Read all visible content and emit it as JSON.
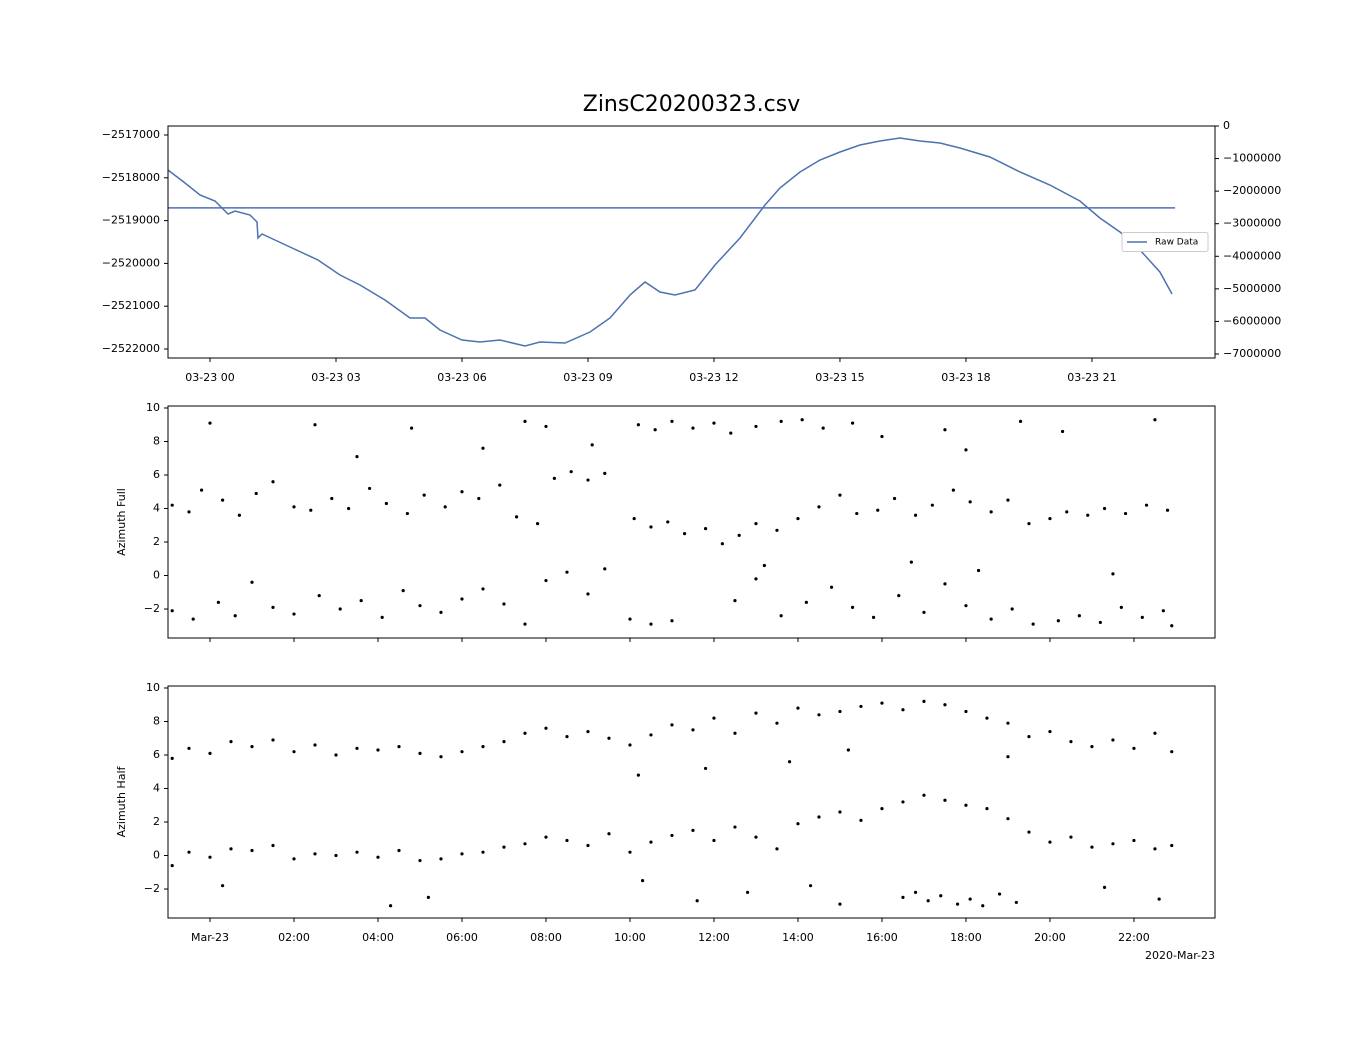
{
  "chart_data": [
    {
      "type": "line",
      "title": "ZinsC20200323.csv",
      "xlim": [
        -1,
        23.93
      ],
      "xticks": [
        {
          "value": 0,
          "label": "03-23 00"
        },
        {
          "value": 3,
          "label": "03-23 03"
        },
        {
          "value": 6,
          "label": "03-23 06"
        },
        {
          "value": 9,
          "label": "03-23 09"
        },
        {
          "value": 12,
          "label": "03-23 12"
        },
        {
          "value": 15,
          "label": "03-23 15"
        },
        {
          "value": 18,
          "label": "03-23 18"
        },
        {
          "value": 21,
          "label": "03-23 21"
        }
      ],
      "ylim": [
        -2522210,
        -2516790
      ],
      "yticks": [
        {
          "value": -2522000,
          "label": "−2522000"
        },
        {
          "value": -2521000,
          "label": "−2521000"
        },
        {
          "value": -2520000,
          "label": "−2520000"
        },
        {
          "value": -2519000,
          "label": "−2519000"
        },
        {
          "value": -2518000,
          "label": "−2518000"
        },
        {
          "value": -2517000,
          "label": "−2517000"
        }
      ],
      "y2lim": [
        -7123000,
        0
      ],
      "y2ticks": [
        {
          "value": -7000000,
          "label": "−7000000"
        },
        {
          "value": -6000000,
          "label": "−6000000"
        },
        {
          "value": -5000000,
          "label": "−5000000"
        },
        {
          "value": -4000000,
          "label": "−4000000"
        },
        {
          "value": -3000000,
          "label": "−3000000"
        },
        {
          "value": -2000000,
          "label": "−2000000"
        },
        {
          "value": -1000000,
          "label": "−1000000"
        },
        0
      ],
      "legend": "center right",
      "series": [
        {
          "color": "#4c72b0",
          "x": [
            -1.0,
            -0.595,
            -0.238,
            0.119,
            0.429,
            0.595,
            0.952,
            1.119,
            1.143,
            1.238,
            1.905,
            2.571,
            3.095,
            3.571,
            4.167,
            4.762,
            5.119,
            5.476,
            6.0,
            6.429,
            6.905,
            7.5,
            7.857,
            8.452,
            9.048,
            9.524,
            10.0,
            10.357,
            10.714,
            11.071,
            11.548,
            12.024,
            12.619,
            13.214,
            13.571,
            14.048,
            14.524,
            15.0,
            15.476,
            15.952,
            16.429,
            16.905,
            17.381,
            17.857,
            18.571,
            19.286,
            20.0,
            20.714,
            21.19,
            21.667,
            22.143,
            22.619,
            22.905
          ],
          "values": [
            -2517818,
            -2518121,
            -2518402,
            -2518542,
            -2518846,
            -2518776,
            -2518869,
            -2519033,
            -2519407,
            -2519313,
            -2519617,
            -2519921,
            -2520271,
            -2520505,
            -2520855,
            -2521276,
            -2521276,
            -2521556,
            -2521790,
            -2521836,
            -2521790,
            -2521930,
            -2521836,
            -2521860,
            -2521603,
            -2521276,
            -2520738,
            -2520435,
            -2520668,
            -2520738,
            -2520621,
            -2520037,
            -2519407,
            -2518636,
            -2518238,
            -2517864,
            -2517584,
            -2517397,
            -2517234,
            -2517140,
            -2517070,
            -2517140,
            -2517187,
            -2517304,
            -2517514,
            -2517864,
            -2518168,
            -2518542,
            -2518939,
            -2519266,
            -2519687,
            -2520201,
            -2520715
          ]
        },
        {
          "name": "Raw Data",
          "color": "#4c72b0",
          "axis": "y2",
          "x": [
            -1.0,
            22.98
          ],
          "values": [
            -2515000,
            -2515000
          ]
        }
      ]
    },
    {
      "type": "scatter",
      "ylabel": "Azimuth Full",
      "color": "#000000",
      "xlim": [
        -1,
        23.93
      ],
      "xticks": [
        0,
        2,
        4,
        6,
        8,
        10,
        12,
        14,
        16,
        18,
        20,
        22
      ],
      "xtick_labels": false,
      "ylim": [
        -3.73,
        10.12
      ],
      "yticks": [
        {
          "value": -2,
          "label": "−2"
        },
        0,
        2,
        4,
        6,
        8,
        10
      ],
      "x": [
        -0.9,
        -0.5,
        -0.2,
        0.3,
        0.7,
        1.1,
        1.5,
        2.0,
        2.4,
        2.9,
        3.3,
        3.8,
        4.2,
        4.7,
        5.1,
        5.6,
        6.0,
        6.4,
        6.9,
        7.3,
        7.8,
        8.2,
        8.6,
        9.0,
        9.4,
        10.1,
        10.5,
        10.9,
        11.3,
        11.8,
        12.2,
        12.6,
        13.0,
        13.5,
        14.0,
        14.5,
        15.0,
        15.4,
        15.9,
        16.3,
        16.8,
        17.2,
        17.7,
        18.1,
        18.6,
        19.0,
        19.5,
        20.0,
        20.4,
        20.9,
        21.3,
        21.8,
        22.3,
        22.8,
        10.2,
        10.6,
        11.0,
        11.5,
        12.0,
        12.4,
        13.0,
        13.6,
        14.1,
        14.6,
        15.3,
        16.0,
        17.5,
        19.3,
        20.3,
        0.0,
        2.5,
        4.8,
        7.5,
        8.0,
        22.5,
        9.1,
        6.5,
        3.5,
        18.0,
        -0.9,
        -0.4,
        0.2,
        0.6,
        1.0,
        1.5,
        2.0,
        2.6,
        3.1,
        3.6,
        4.1,
        4.6,
        5.0,
        5.5,
        6.0,
        6.5,
        7.0,
        7.5,
        8.0,
        8.5,
        9.0,
        9.4,
        10.0,
        10.5,
        11.0,
        12.5,
        13.0,
        13.6,
        14.2,
        14.8,
        15.3,
        15.8,
        16.4,
        17.0,
        17.5,
        18.0,
        18.6,
        19.1,
        19.6,
        20.2,
        20.7,
        21.2,
        21.7,
        22.2,
        22.7,
        22.9,
        13.2,
        16.7,
        18.3,
        21.5
      ],
      "values": [
        4.2,
        3.8,
        5.1,
        4.5,
        3.6,
        4.9,
        5.6,
        4.1,
        3.9,
        4.6,
        4.0,
        5.2,
        4.3,
        3.7,
        4.8,
        4.1,
        5.0,
        4.6,
        5.4,
        3.5,
        3.1,
        5.8,
        6.2,
        5.7,
        6.1,
        3.4,
        2.9,
        3.2,
        2.5,
        2.8,
        1.9,
        2.4,
        3.1,
        2.7,
        3.4,
        4.1,
        4.8,
        3.7,
        3.9,
        4.6,
        3.6,
        4.2,
        5.1,
        4.4,
        3.8,
        4.5,
        3.1,
        3.4,
        3.8,
        3.6,
        4.0,
        3.7,
        4.2,
        3.9,
        9.0,
        8.7,
        9.2,
        8.8,
        9.1,
        8.5,
        8.9,
        9.2,
        9.3,
        8.8,
        9.1,
        8.3,
        8.7,
        9.2,
        8.6,
        9.1,
        9.0,
        8.8,
        9.2,
        8.9,
        9.3,
        7.8,
        7.6,
        7.1,
        7.5,
        -2.1,
        -2.6,
        -1.6,
        -2.4,
        -0.4,
        -1.9,
        -2.3,
        -1.2,
        -2.0,
        -1.5,
        -2.5,
        -0.9,
        -1.8,
        -2.2,
        -1.4,
        -0.8,
        -1.7,
        -2.9,
        -0.3,
        0.2,
        -1.1,
        0.4,
        -2.6,
        -2.9,
        -2.7,
        -1.5,
        -0.2,
        -2.4,
        -1.6,
        -0.7,
        -1.9,
        -2.5,
        -1.2,
        -2.2,
        -0.5,
        -1.8,
        -2.6,
        -2.0,
        -2.9,
        -2.7,
        -2.4,
        -2.8,
        -1.9,
        -2.5,
        -2.1,
        -3.0,
        0.6,
        0.8,
        0.3,
        0.1
      ]
    },
    {
      "type": "scatter",
      "ylabel": "Azimuth Half",
      "color": "#000000",
      "offset_label": "2020-Mar-23",
      "xlim": [
        -1,
        23.93
      ],
      "xticks": [
        {
          "value": 0,
          "label": "Mar-23"
        },
        {
          "value": 2,
          "label": "02:00"
        },
        {
          "value": 4,
          "label": "04:00"
        },
        {
          "value": 6,
          "label": "06:00"
        },
        {
          "value": 8,
          "label": "08:00"
        },
        {
          "value": 10,
          "label": "10:00"
        },
        {
          "value": 12,
          "label": "12:00"
        },
        {
          "value": 14,
          "label": "14:00"
        },
        {
          "value": 16,
          "label": "16:00"
        },
        {
          "value": 18,
          "label": "18:00"
        },
        {
          "value": 20,
          "label": "20:00"
        },
        {
          "value": 22,
          "label": "22:00"
        }
      ],
      "ylim": [
        -3.73,
        10.12
      ],
      "yticks": [
        {
          "value": -2,
          "label": "−2"
        },
        0,
        2,
        4,
        6,
        8,
        10
      ],
      "x": [
        -0.9,
        -0.5,
        0.0,
        0.5,
        1.0,
        1.5,
        2.0,
        2.5,
        3.0,
        3.5,
        4.0,
        4.5,
        5.0,
        5.5,
        6.0,
        6.5,
        7.0,
        7.5,
        8.0,
        8.5,
        9.0,
        9.5,
        10.0,
        10.5,
        11.0,
        11.5,
        12.0,
        12.5,
        13.0,
        13.5,
        14.0,
        14.5,
        15.0,
        15.5,
        16.0,
        16.5,
        17.0,
        17.5,
        18.0,
        18.5,
        19.0,
        19.5,
        20.0,
        20.5,
        21.0,
        21.5,
        22.0,
        22.5,
        22.9,
        10.2,
        11.8,
        13.8,
        15.2,
        19.0,
        -0.9,
        -0.5,
        0.0,
        0.5,
        1.0,
        1.5,
        2.0,
        2.5,
        3.0,
        3.5,
        4.0,
        4.5,
        5.0,
        5.5,
        6.0,
        6.5,
        7.0,
        7.5,
        8.0,
        8.5,
        9.0,
        9.5,
        10.0,
        10.5,
        11.0,
        11.5,
        12.0,
        12.5,
        13.0,
        13.5,
        14.0,
        14.5,
        15.0,
        15.5,
        16.0,
        16.5,
        17.0,
        17.5,
        18.0,
        18.5,
        19.0,
        19.5,
        20.0,
        20.5,
        21.0,
        21.5,
        22.0,
        22.5,
        22.9,
        10.3,
        12.8,
        14.3,
        15.0,
        16.5,
        16.8,
        17.1,
        17.4,
        17.8,
        18.1,
        18.4,
        18.8,
        19.2,
        4.3,
        5.2,
        0.3,
        11.6,
        21.3,
        22.6
      ],
      "values": [
        5.8,
        6.4,
        6.1,
        6.8,
        6.5,
        6.9,
        6.2,
        6.6,
        6.0,
        6.4,
        6.3,
        6.5,
        6.1,
        5.9,
        6.2,
        6.5,
        6.8,
        7.3,
        7.6,
        7.1,
        7.4,
        7.0,
        6.6,
        7.2,
        7.8,
        7.5,
        8.2,
        7.3,
        8.5,
        7.9,
        8.8,
        8.4,
        8.6,
        8.9,
        9.1,
        8.7,
        9.2,
        9.0,
        8.6,
        8.2,
        7.9,
        7.1,
        7.4,
        6.8,
        6.5,
        6.9,
        6.4,
        7.3,
        6.2,
        4.8,
        5.2,
        5.6,
        6.3,
        5.9,
        -0.6,
        0.2,
        -0.1,
        0.4,
        0.3,
        0.6,
        -0.2,
        0.1,
        0.0,
        0.2,
        -0.1,
        0.3,
        -0.3,
        -0.2,
        0.1,
        0.2,
        0.5,
        0.7,
        1.1,
        0.9,
        0.6,
        1.3,
        0.2,
        0.8,
        1.2,
        1.5,
        0.9,
        1.7,
        1.1,
        0.4,
        1.9,
        2.3,
        2.6,
        2.1,
        2.8,
        3.2,
        3.6,
        3.3,
        3.0,
        2.8,
        2.2,
        1.4,
        0.8,
        1.1,
        0.5,
        0.7,
        0.9,
        0.4,
        0.6,
        -1.5,
        -2.2,
        -1.8,
        -2.9,
        -2.5,
        -2.2,
        -2.7,
        -2.4,
        -2.9,
        -2.6,
        -3.0,
        -2.3,
        -2.8,
        -3.0,
        -2.5,
        -1.8,
        -2.7,
        -1.9,
        -2.6
      ]
    }
  ]
}
